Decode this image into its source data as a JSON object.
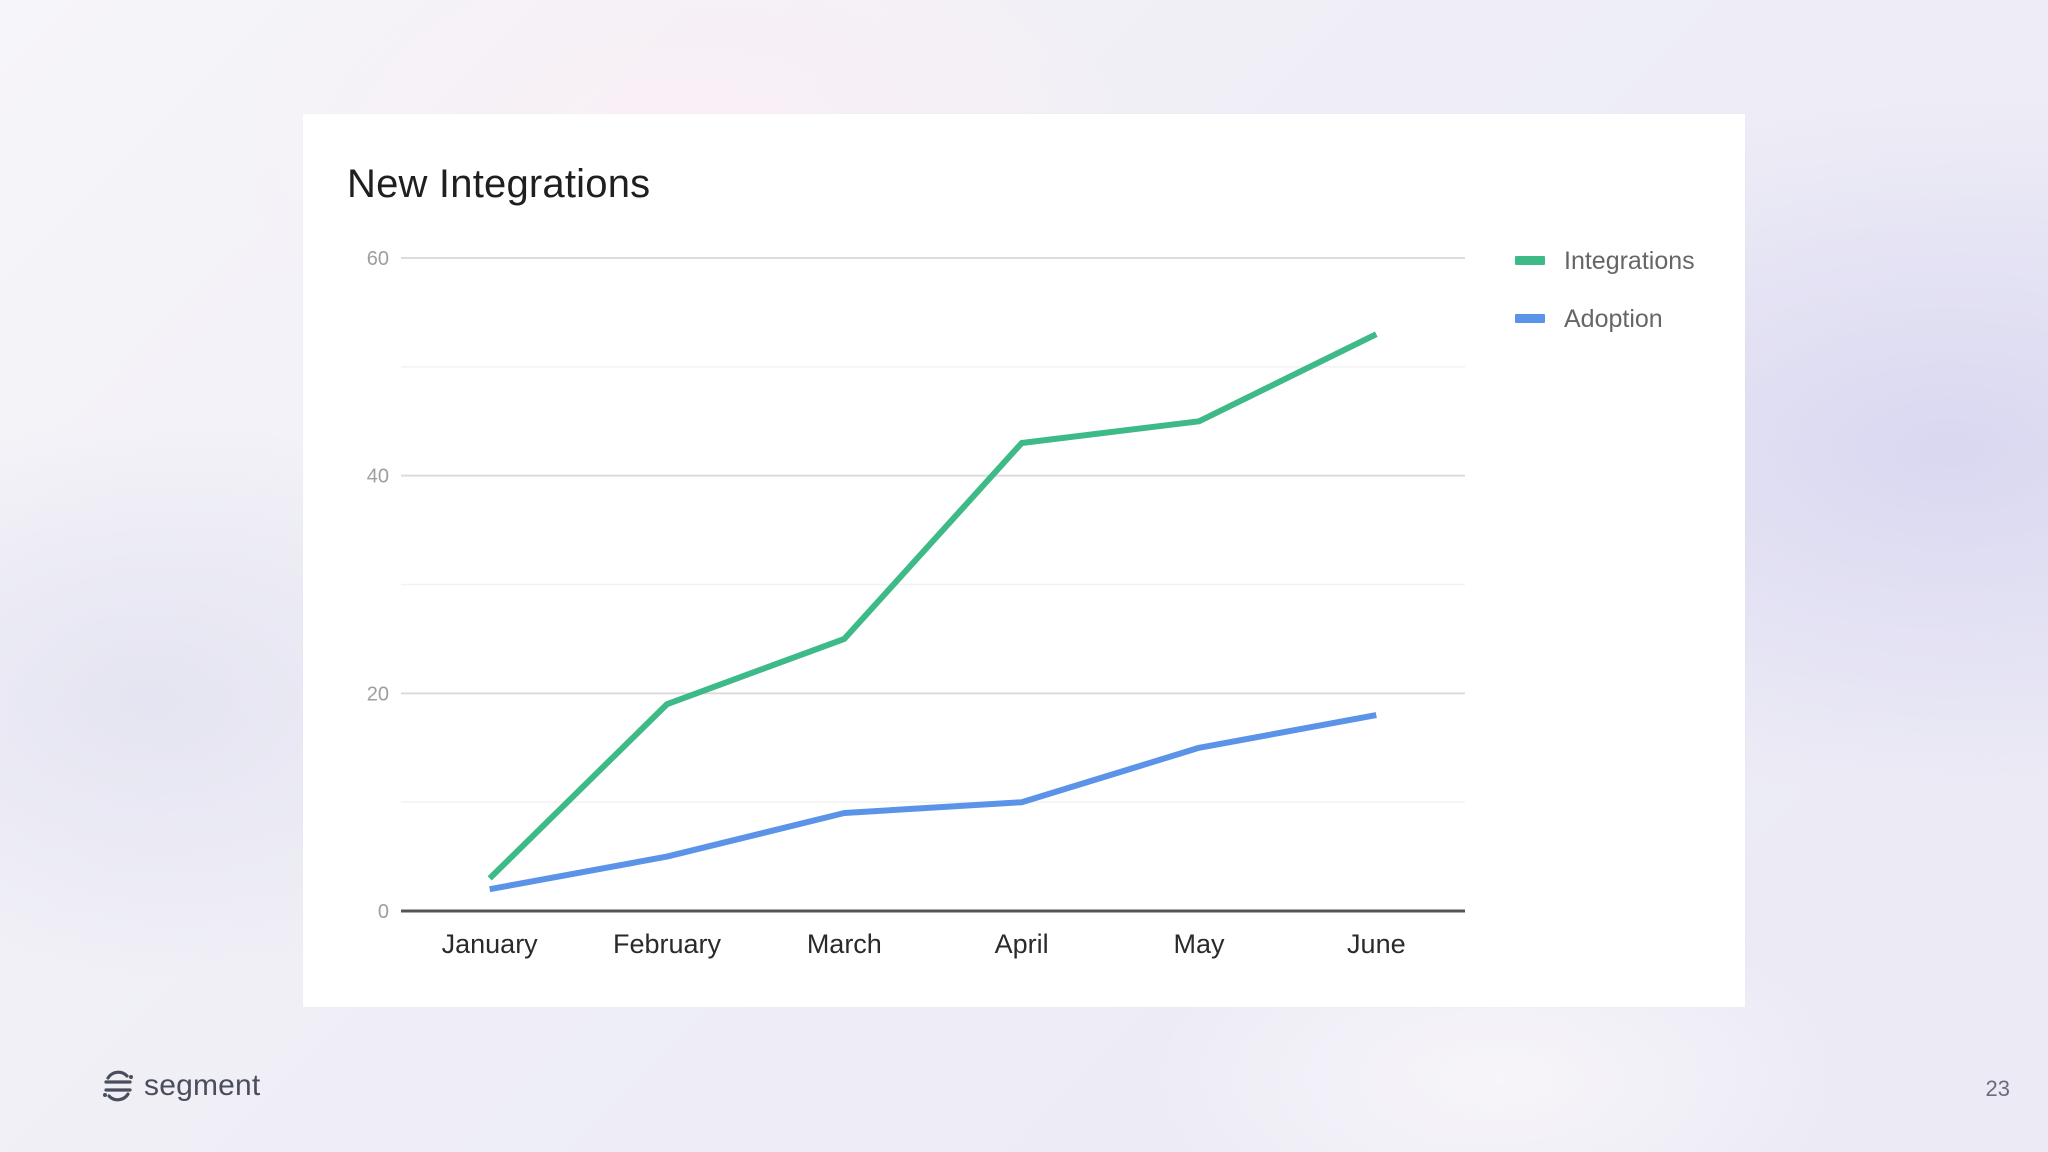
{
  "chart_data": {
    "type": "line",
    "title": "New Integrations",
    "xlabel": "",
    "ylabel": "",
    "categories": [
      "January",
      "February",
      "March",
      "April",
      "May",
      "June"
    ],
    "ylim": [
      0,
      60
    ],
    "yticks": [
      0,
      20,
      40,
      60
    ],
    "minor_gridlines": [
      10,
      30,
      50
    ],
    "grid": true,
    "legend_position": "right",
    "series": [
      {
        "name": "Integrations",
        "color": "#3dba87",
        "values": [
          3,
          19,
          25,
          43,
          45,
          53
        ]
      },
      {
        "name": "Adoption",
        "color": "#5b93e8",
        "values": [
          2,
          5,
          9,
          10,
          15,
          18
        ]
      }
    ]
  },
  "footer": {
    "brand": "segment",
    "logo_icon": "segment-logo-icon",
    "page_number": "23"
  }
}
